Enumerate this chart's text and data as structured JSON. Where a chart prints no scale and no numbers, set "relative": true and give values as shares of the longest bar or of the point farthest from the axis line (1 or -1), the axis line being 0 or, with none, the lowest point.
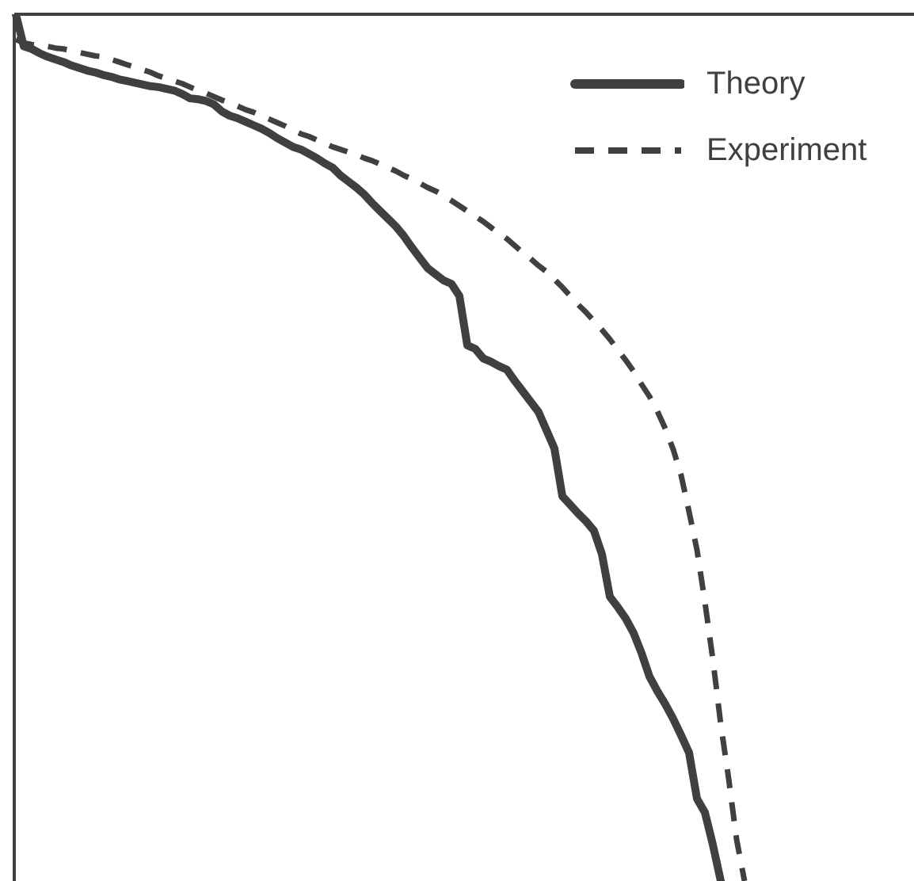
{
  "chart_data": {
    "type": "line",
    "relative": true,
    "legend": "top right",
    "marker": "none",
    "categories": [
      null,
      null,
      null,
      null,
      null,
      null,
      null,
      null,
      null,
      null,
      null,
      null,
      null,
      null,
      null,
      null,
      null,
      null,
      null,
      null,
      null,
      null,
      null,
      null,
      null,
      null,
      null,
      null,
      null,
      null,
      null,
      null,
      null,
      null,
      null,
      null,
      null,
      null,
      null,
      null,
      null,
      null,
      null,
      null,
      null,
      null,
      null,
      null,
      null,
      null,
      null,
      null,
      null,
      null,
      null,
      null,
      null,
      null,
      null,
      null,
      null,
      null,
      null,
      null,
      null,
      null,
      null,
      null,
      null,
      null,
      null,
      null,
      null,
      null,
      null,
      null,
      null,
      null,
      null,
      null,
      null,
      null,
      null,
      null,
      null,
      null,
      null,
      null,
      null,
      null,
      null,
      null,
      null
    ],
    "series": [
      {
        "name": "Theory",
        "color": "#404040",
        "line_style": "solid",
        "values": [
          0,
          -0.037,
          -0.04,
          -0.045,
          -0.049,
          -0.052,
          -0.055,
          -0.059,
          -0.062,
          -0.065,
          -0.067,
          -0.07,
          -0.072,
          -0.075,
          -0.077,
          -0.079,
          -0.081,
          -0.083,
          -0.084,
          -0.086,
          -0.088,
          -0.092,
          -0.097,
          -0.098,
          -0.1,
          -0.104,
          -0.112,
          -0.117,
          -0.12,
          -0.124,
          -0.128,
          -0.132,
          -0.137,
          -0.143,
          -0.148,
          -0.153,
          -0.156,
          -0.161,
          -0.166,
          -0.172,
          -0.177,
          -0.186,
          -0.193,
          -0.2,
          -0.208,
          -0.218,
          -0.227,
          -0.236,
          -0.245,
          -0.256,
          -0.269,
          -0.281,
          -0.293,
          -0.3,
          -0.307,
          -0.311,
          -0.325,
          -0.382,
          -0.386,
          -0.397,
          -0.401,
          -0.406,
          -0.41,
          -0.423,
          -0.435,
          -0.447,
          -0.459,
          -0.48,
          -0.501,
          -0.556,
          -0.566,
          -0.576,
          -0.585,
          -0.596,
          -0.623,
          -0.672,
          -0.684,
          -0.697,
          -0.714,
          -0.737,
          -0.764,
          -0.781,
          -0.796,
          -0.813,
          -0.832,
          -0.852,
          -0.905,
          -0.921,
          -0.958,
          -1.0,
          null,
          null,
          null
        ]
      },
      {
        "name": "Experiment",
        "color": "#404040",
        "line_style": "dashed",
        "values": [
          -0.029,
          -0.033,
          -0.035,
          -0.036,
          -0.037,
          -0.039,
          -0.04,
          -0.042,
          -0.044,
          -0.046,
          -0.048,
          -0.049,
          -0.052,
          -0.055,
          -0.058,
          -0.061,
          -0.064,
          -0.067,
          -0.071,
          -0.074,
          -0.077,
          -0.08,
          -0.084,
          -0.088,
          -0.091,
          -0.095,
          -0.099,
          -0.102,
          -0.106,
          -0.11,
          -0.113,
          -0.117,
          -0.121,
          -0.125,
          -0.129,
          -0.134,
          -0.138,
          -0.141,
          -0.145,
          -0.149,
          -0.153,
          -0.156,
          -0.159,
          -0.162,
          -0.166,
          -0.169,
          -0.173,
          -0.177,
          -0.181,
          -0.186,
          -0.19,
          -0.195,
          -0.2,
          -0.204,
          -0.209,
          -0.215,
          -0.221,
          -0.227,
          -0.233,
          -0.239,
          -0.246,
          -0.253,
          -0.259,
          -0.267,
          -0.275,
          -0.282,
          -0.29,
          -0.297,
          -0.306,
          -0.315,
          -0.325,
          -0.335,
          -0.344,
          -0.354,
          -0.364,
          -0.375,
          -0.387,
          -0.399,
          -0.412,
          -0.427,
          -0.441,
          -0.458,
          -0.478,
          -0.502,
          -0.532,
          -0.574,
          -0.618,
          -0.678,
          -0.744,
          -0.819,
          -0.882,
          -0.952,
          -1.0
        ]
      }
    ]
  }
}
